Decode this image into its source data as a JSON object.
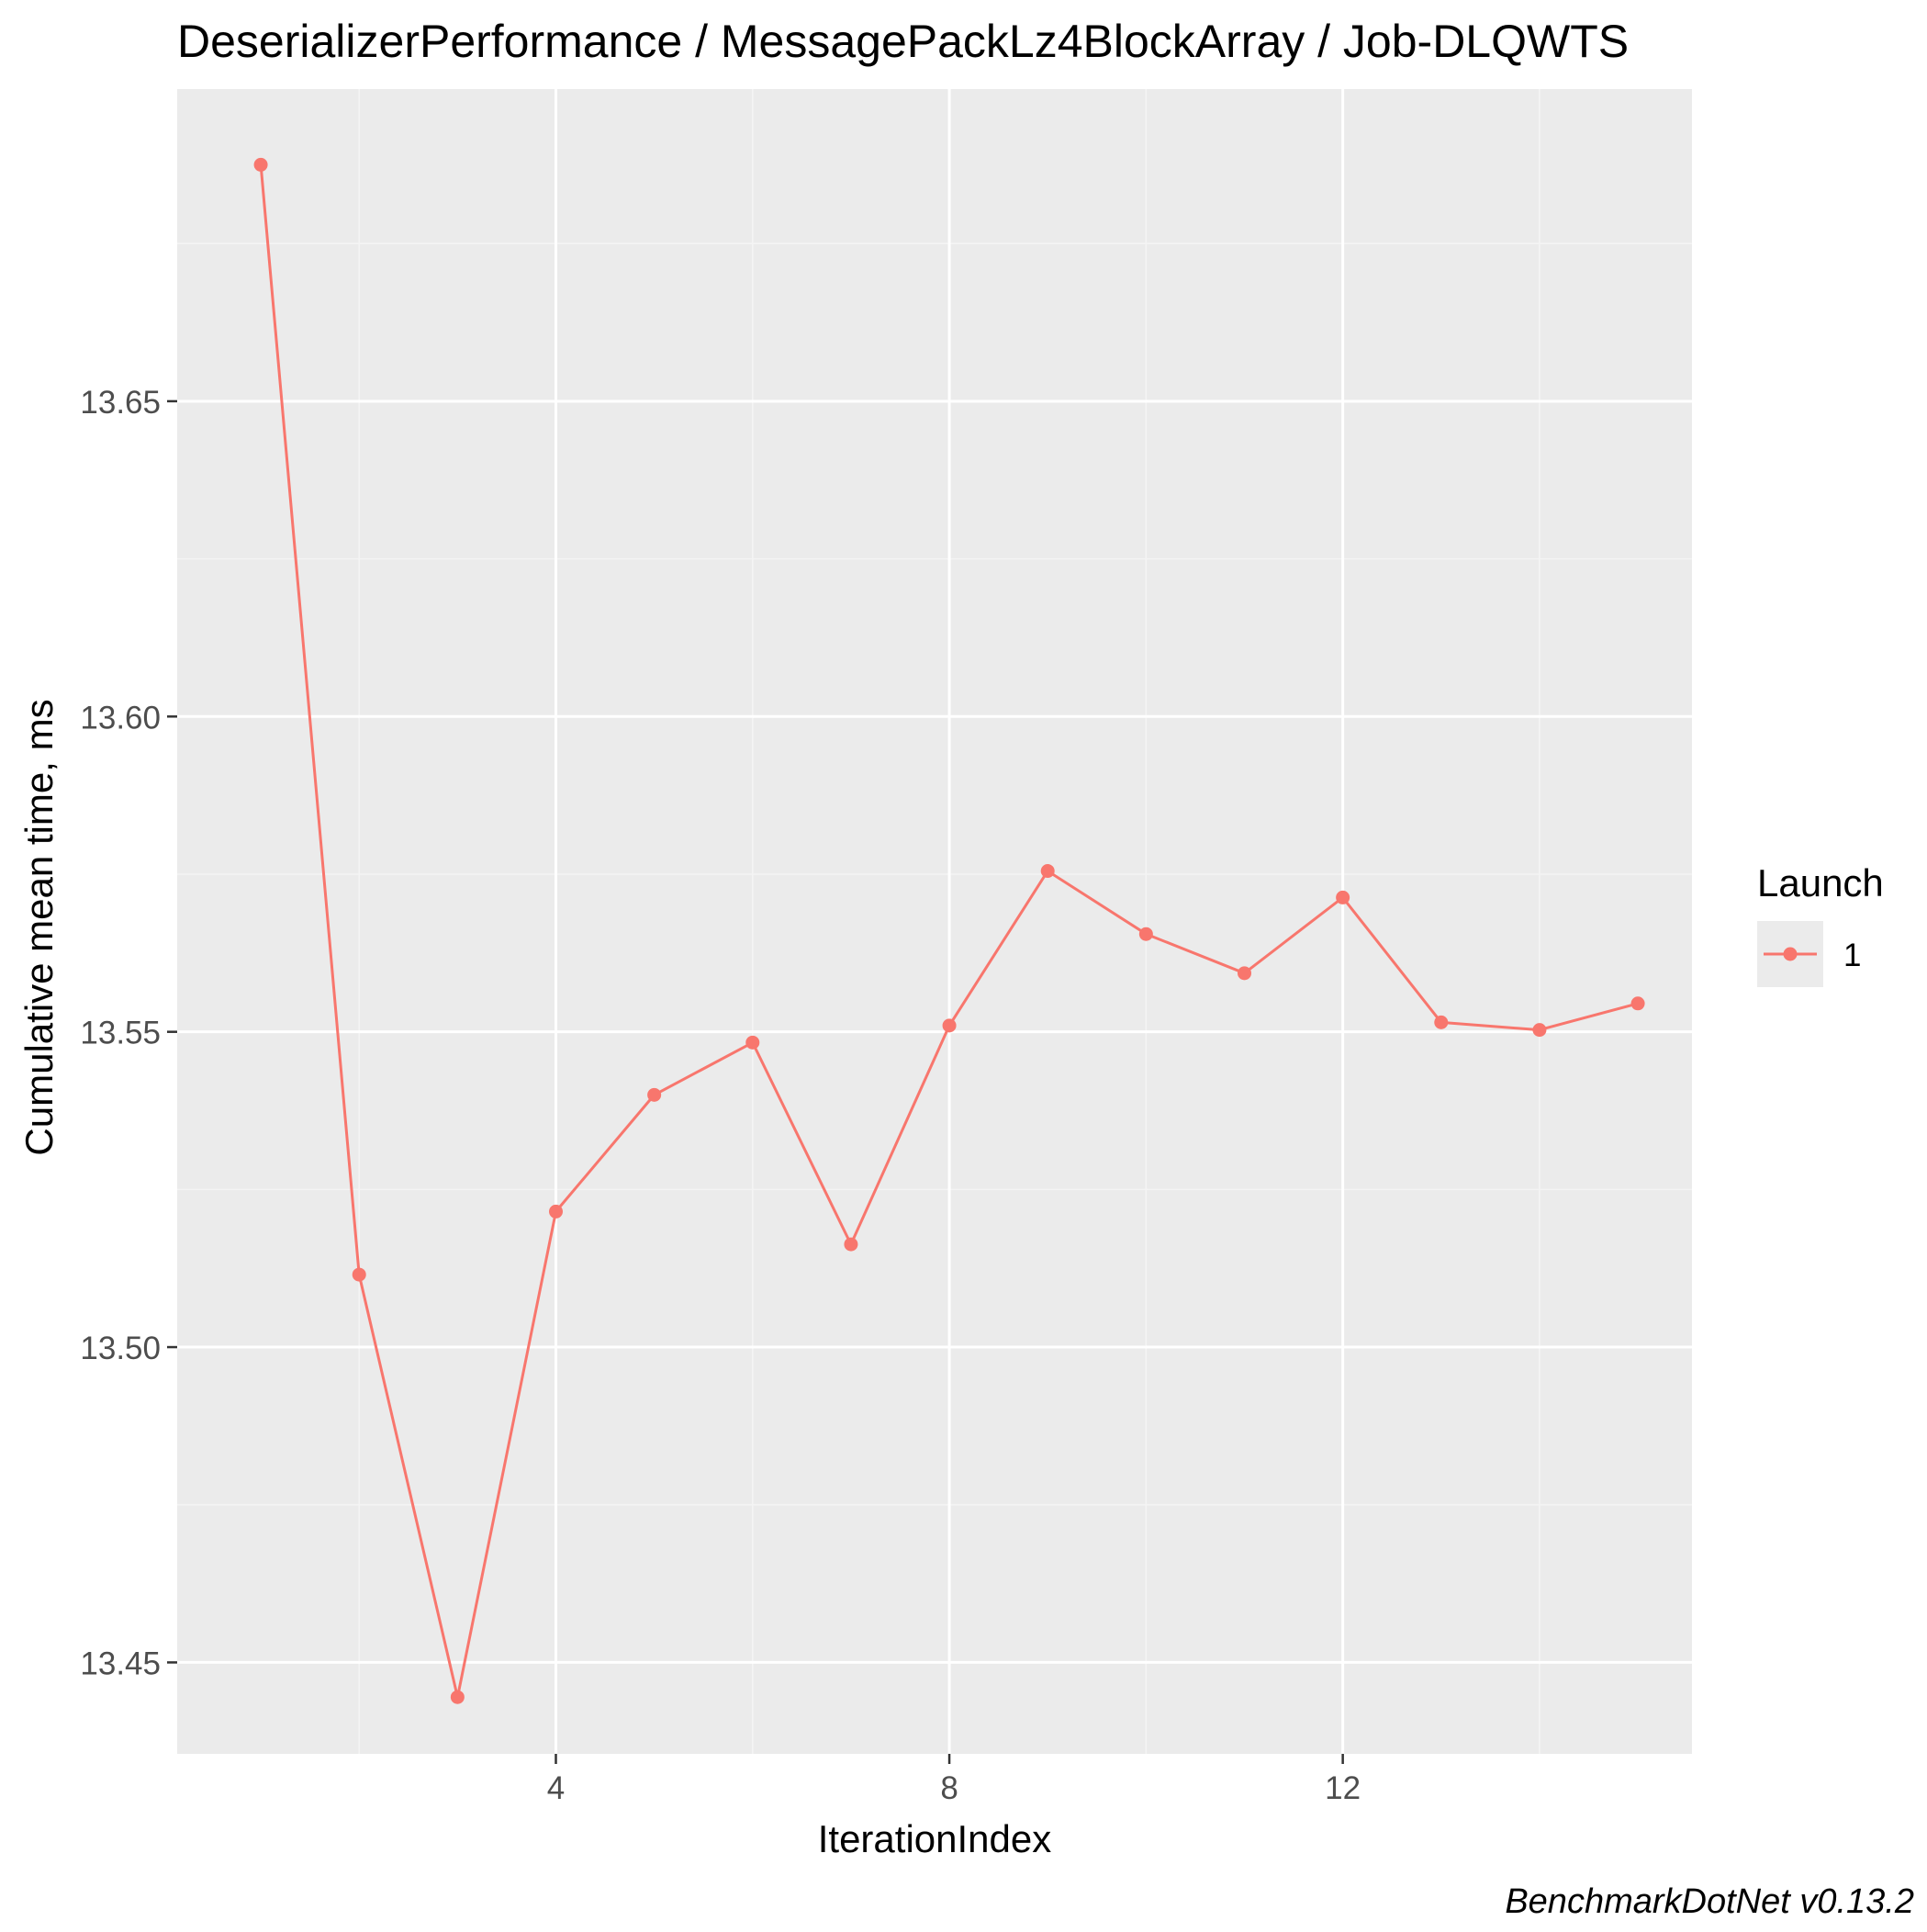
{
  "chart_data": {
    "type": "line",
    "title": "DeserializerPerformance / MessagePackLz4BlockArray / Job-DLQWTS",
    "xlabel": "IterationIndex",
    "ylabel": "Cumulative mean time, ms",
    "caption": "BenchmarkDotNet v0.13.2",
    "xlim": [
      0.15,
      15.55
    ],
    "ylim": [
      13.4355,
      13.6995
    ],
    "x_ticks": [
      4,
      8,
      12
    ],
    "x_tick_labels": [
      "4",
      "8",
      "12"
    ],
    "x_minor_ticks": [
      2,
      6,
      10,
      14
    ],
    "y_ticks": [
      13.45,
      13.5,
      13.55,
      13.6,
      13.65
    ],
    "y_tick_labels": [
      "13.45",
      "13.50",
      "13.55",
      "13.60",
      "13.65"
    ],
    "y_minor_ticks": [
      13.475,
      13.525,
      13.575,
      13.625,
      13.675
    ],
    "grid": true,
    "legend": {
      "title": "Launch",
      "position": "right",
      "entries": [
        "1"
      ]
    },
    "series": [
      {
        "name": "1",
        "color": "#F8766D",
        "x": [
          1,
          2,
          3,
          4,
          5,
          6,
          7,
          8,
          9,
          10,
          11,
          12,
          13,
          14,
          15
        ],
        "values": [
          13.6875,
          13.5115,
          13.4445,
          13.5215,
          13.54,
          13.5483,
          13.5163,
          13.551,
          13.5755,
          13.5655,
          13.5593,
          13.5713,
          13.5515,
          13.5503,
          13.5545
        ]
      }
    ]
  },
  "style": {
    "panel_bg": "#EBEBEB",
    "grid_major": "#FFFFFF",
    "grid_minor": "#F4F4F4",
    "tick_text": "#4D4D4D",
    "text": "#000000"
  }
}
